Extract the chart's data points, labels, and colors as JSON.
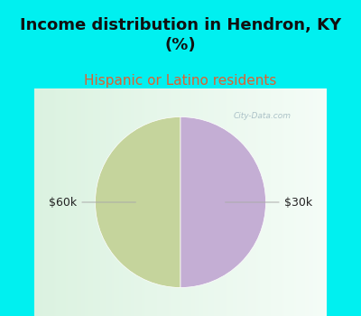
{
  "title": "Income distribution in Hendron, KY\n(%)",
  "subtitle": "Hispanic or Latino residents",
  "slices": [
    50,
    50
  ],
  "labels": [
    "$60k",
    "$30k"
  ],
  "colors": [
    "#c5d49c",
    "#c4aed4"
  ],
  "startangle": 90,
  "background_color": "#00f0f0",
  "title_fontsize": 13,
  "subtitle_fontsize": 11,
  "subtitle_color": "#e06030",
  "label_fontsize": 9,
  "label_color": "#222222",
  "watermark": "City-Data.com"
}
